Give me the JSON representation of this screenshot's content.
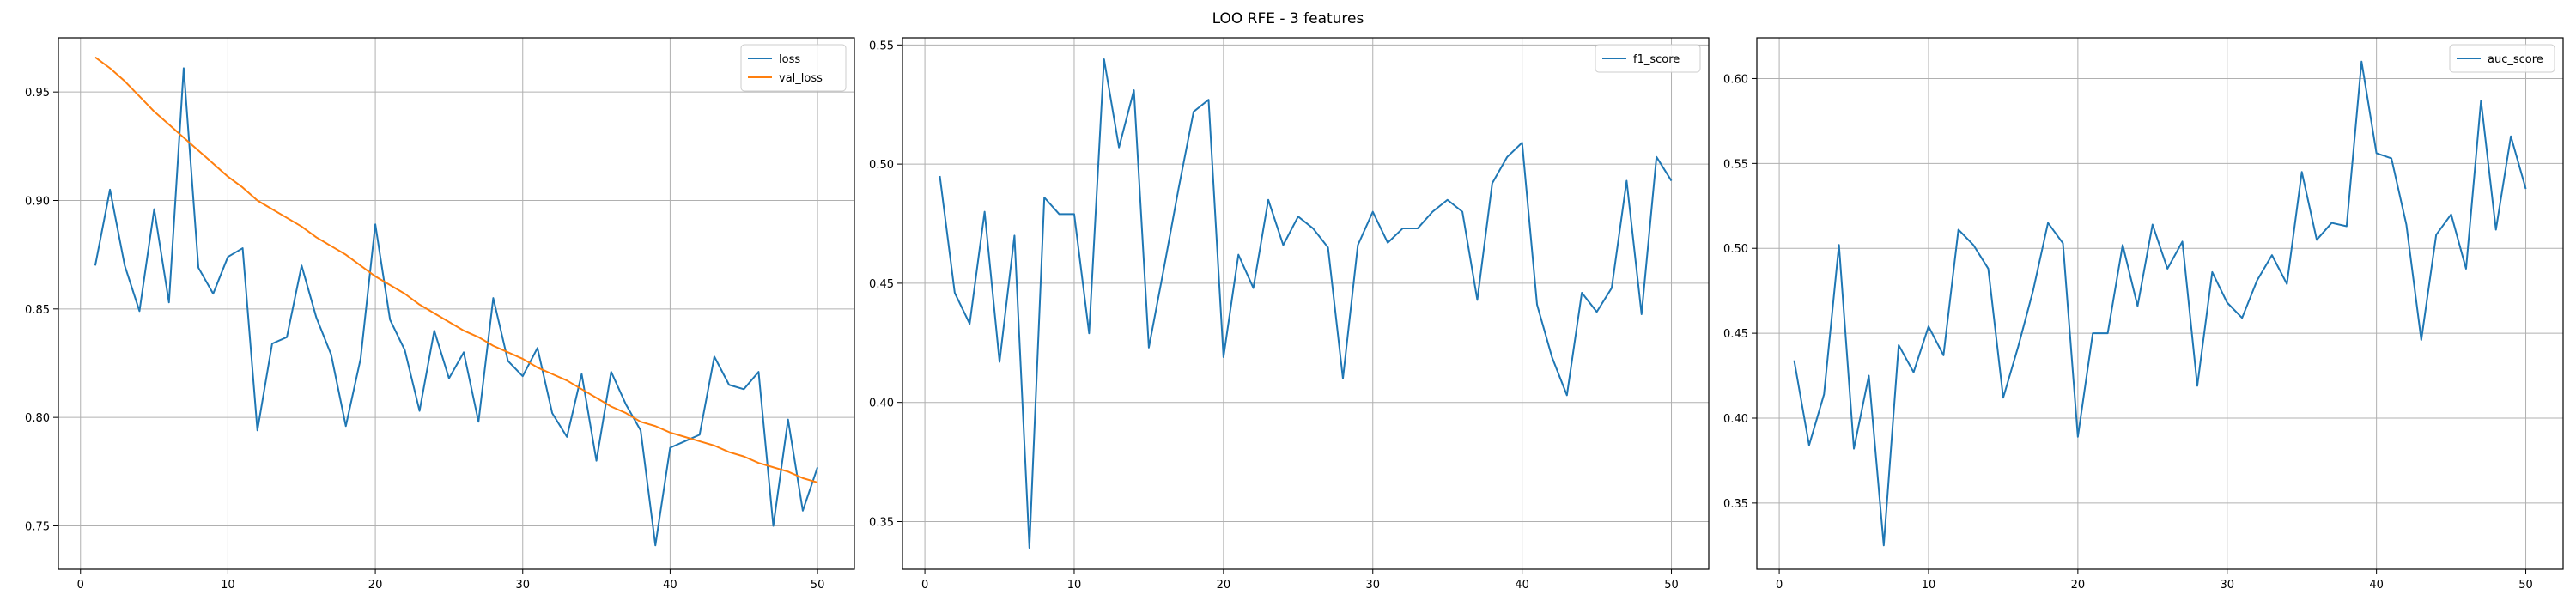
{
  "figure": {
    "title": "LOO RFE - 3 features"
  },
  "chart_data": [
    {
      "type": "line",
      "x": [
        1,
        2,
        3,
        4,
        5,
        6,
        7,
        8,
        9,
        10,
        11,
        12,
        13,
        14,
        15,
        16,
        17,
        18,
        19,
        20,
        21,
        22,
        23,
        24,
        25,
        26,
        27,
        28,
        29,
        30,
        31,
        32,
        33,
        34,
        35,
        36,
        37,
        38,
        39,
        40,
        41,
        42,
        43,
        44,
        45,
        46,
        47,
        48,
        49,
        50
      ],
      "series": [
        {
          "name": "loss",
          "color": "#1f77b4",
          "values": [
            0.87,
            0.905,
            0.87,
            0.849,
            0.896,
            0.853,
            0.961,
            0.869,
            0.857,
            0.874,
            0.878,
            0.794,
            0.834,
            0.837,
            0.87,
            0.846,
            0.829,
            0.796,
            0.827,
            0.889,
            0.845,
            0.831,
            0.803,
            0.84,
            0.818,
            0.83,
            0.798,
            0.855,
            0.826,
            0.819,
            0.832,
            0.802,
            0.791,
            0.82,
            0.78,
            0.821,
            0.806,
            0.794,
            0.741,
            0.786,
            0.789,
            0.792,
            0.828,
            0.815,
            0.813,
            0.821,
            0.75,
            0.799,
            0.757,
            0.777
          ]
        },
        {
          "name": "val_loss",
          "color": "#ff7f0e",
          "values": [
            0.966,
            0.961,
            0.955,
            0.948,
            0.941,
            0.935,
            0.929,
            0.923,
            0.917,
            0.911,
            0.906,
            0.9,
            0.896,
            0.892,
            0.888,
            0.883,
            0.879,
            0.875,
            0.87,
            0.865,
            0.861,
            0.857,
            0.852,
            0.848,
            0.844,
            0.84,
            0.837,
            0.833,
            0.83,
            0.827,
            0.823,
            0.82,
            0.817,
            0.813,
            0.809,
            0.805,
            0.802,
            0.798,
            0.796,
            0.793,
            0.791,
            0.789,
            0.787,
            0.784,
            0.782,
            0.779,
            0.777,
            0.775,
            0.772,
            0.77
          ]
        }
      ],
      "ylim": [
        0.73,
        0.975
      ],
      "xlim": [
        -1.5,
        52.5
      ],
      "xticks": [
        0,
        10,
        20,
        30,
        40,
        50
      ],
      "yticks": [
        0.75,
        0.8,
        0.85,
        0.9,
        0.95
      ],
      "ytick_labels": [
        "0.75",
        "0.80",
        "0.85",
        "0.90",
        "0.95"
      ],
      "grid": true,
      "legend_position": "top-right"
    },
    {
      "type": "line",
      "x": [
        1,
        2,
        3,
        4,
        5,
        6,
        7,
        8,
        9,
        10,
        11,
        12,
        13,
        14,
        15,
        16,
        17,
        18,
        19,
        20,
        21,
        22,
        23,
        24,
        25,
        26,
        27,
        28,
        29,
        30,
        31,
        32,
        33,
        34,
        35,
        36,
        37,
        38,
        39,
        40,
        41,
        42,
        43,
        44,
        45,
        46,
        47,
        48,
        49,
        50
      ],
      "series": [
        {
          "name": "f1_score",
          "color": "#1f77b4",
          "values": [
            0.495,
            0.446,
            0.433,
            0.48,
            0.417,
            0.47,
            0.339,
            0.486,
            0.479,
            0.479,
            0.429,
            0.544,
            0.507,
            0.531,
            0.423,
            0.456,
            0.49,
            0.522,
            0.527,
            0.419,
            0.462,
            0.448,
            0.485,
            0.466,
            0.478,
            0.473,
            0.465,
            0.41,
            0.466,
            0.48,
            0.467,
            0.473,
            0.473,
            0.48,
            0.485,
            0.48,
            0.443,
            0.492,
            0.503,
            0.509,
            0.441,
            0.419,
            0.403,
            0.446,
            0.438,
            0.448,
            0.493,
            0.437,
            0.503,
            0.493
          ]
        }
      ],
      "ylim": [
        0.33,
        0.553
      ],
      "xlim": [
        -1.5,
        52.5
      ],
      "xticks": [
        0,
        10,
        20,
        30,
        40,
        50
      ],
      "yticks": [
        0.35,
        0.4,
        0.45,
        0.5,
        0.55
      ],
      "ytick_labels": [
        "0.35",
        "0.40",
        "0.45",
        "0.50",
        "0.55"
      ],
      "grid": true,
      "legend_position": "top-right"
    },
    {
      "type": "line",
      "x": [
        1,
        2,
        3,
        4,
        5,
        6,
        7,
        8,
        9,
        10,
        11,
        12,
        13,
        14,
        15,
        16,
        17,
        18,
        19,
        20,
        21,
        22,
        23,
        24,
        25,
        26,
        27,
        28,
        29,
        30,
        31,
        32,
        33,
        34,
        35,
        36,
        37,
        38,
        39,
        40,
        41,
        42,
        43,
        44,
        45,
        46,
        47,
        48,
        49,
        50
      ],
      "series": [
        {
          "name": "auc_score",
          "color": "#1f77b4",
          "values": [
            0.434,
            0.384,
            0.414,
            0.502,
            0.382,
            0.425,
            0.325,
            0.443,
            0.427,
            0.454,
            0.437,
            0.511,
            0.502,
            0.488,
            0.412,
            0.442,
            0.475,
            0.515,
            0.503,
            0.389,
            0.45,
            0.45,
            0.502,
            0.466,
            0.514,
            0.488,
            0.504,
            0.419,
            0.486,
            0.468,
            0.459,
            0.481,
            0.496,
            0.479,
            0.545,
            0.505,
            0.515,
            0.513,
            0.61,
            0.556,
            0.553,
            0.514,
            0.446,
            0.508,
            0.52,
            0.488,
            0.587,
            0.511,
            0.566,
            0.535
          ]
        }
      ],
      "ylim": [
        0.311,
        0.624
      ],
      "xlim": [
        -1.5,
        52.5
      ],
      "xticks": [
        0,
        10,
        20,
        30,
        40,
        50
      ],
      "yticks": [
        0.35,
        0.4,
        0.45,
        0.5,
        0.55,
        0.6
      ],
      "ytick_labels": [
        "0.35",
        "0.40",
        "0.45",
        "0.50",
        "0.55",
        "0.60"
      ],
      "grid": true,
      "legend_position": "top-right"
    }
  ]
}
